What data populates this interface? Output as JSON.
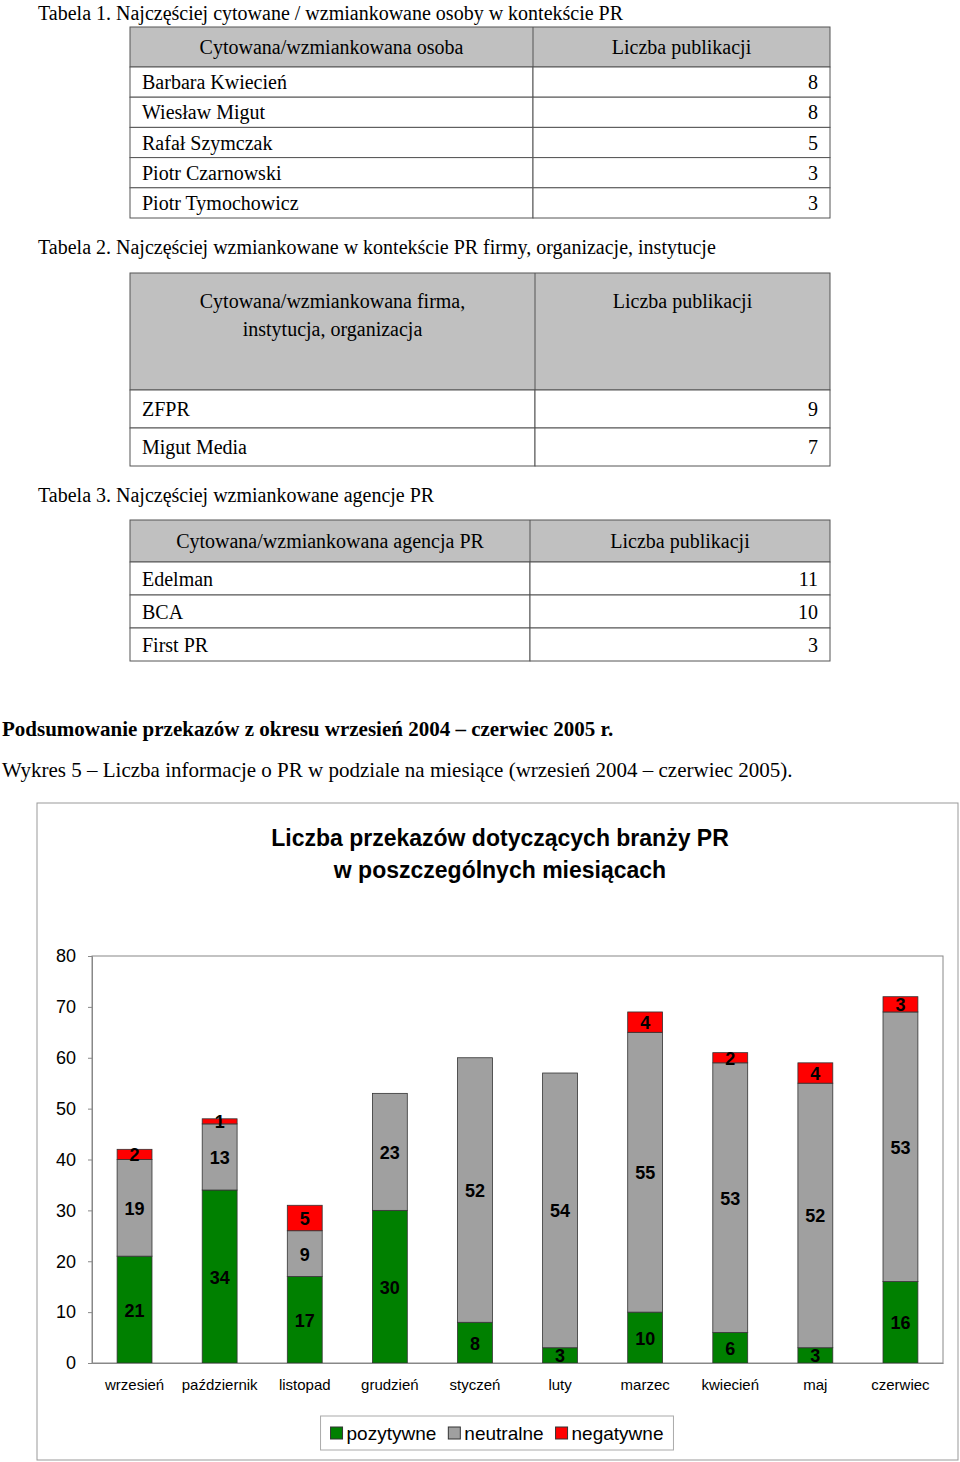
{
  "tables": [
    {
      "caption": "Tabela 1. Najczęściej cytowane / wzmiankowane osoby w kontekście PR",
      "header": [
        "Cytowana/wzmiankowana osoba",
        "Liczba publikacji"
      ],
      "rows": [
        [
          "Barbara Kwiecień",
          8
        ],
        [
          "Wiesław Migut",
          8
        ],
        [
          "Rafał Szymczak",
          5
        ],
        [
          "Piotr Czarnowski",
          3
        ],
        [
          "Piotr Tymochowicz",
          3
        ]
      ]
    },
    {
      "caption": "Tabela 2. Najczęściej wzmiankowane w kontekście PR firmy, organizacje, instytucje",
      "header": [
        "Cytowana/wzmiankowana firma,\ninstytucja, organizacja",
        "Liczba publikacji"
      ],
      "rows": [
        [
          "ZFPR",
          9
        ],
        [
          "Migut Media",
          7
        ]
      ]
    },
    {
      "caption": "Tabela 3. Najczęściej wzmiankowane agencje PR",
      "header": [
        "Cytowana/wzmiankowana agencja PR",
        "Liczba publikacji"
      ],
      "rows": [
        [
          "Edelman",
          11
        ],
        [
          "BCA",
          10
        ],
        [
          "First PR",
          3
        ]
      ]
    }
  ],
  "summary": "Podsumowanie przekazów z okresu wrzesień 2004 – czerwiec 2005 r.",
  "figure_caption": "Wykres 5 – Liczba informacje o PR w podziale na miesiące (wrzesień 2004 – czerwiec 2005).",
  "chart_data": {
    "type": "bar",
    "title": "Liczba przekazów dotyczących branży PR\nw poszczególnych miesiącach",
    "categories": [
      "wrzesień",
      "październik",
      "listopad",
      "grudzień",
      "styczeń",
      "luty",
      "marzec",
      "kwiecień",
      "maj",
      "czerwiec"
    ],
    "series": [
      {
        "name": "pozytywne",
        "color": "#008000",
        "values": [
          21,
          34,
          17,
          30,
          8,
          3,
          10,
          6,
          3,
          16
        ]
      },
      {
        "name": "neutralne",
        "color": "#a0a0a0",
        "values": [
          19,
          13,
          9,
          23,
          52,
          54,
          55,
          53,
          52,
          53
        ]
      },
      {
        "name": "negatywne",
        "color": "#ff0000",
        "values": [
          2,
          1,
          5,
          null,
          null,
          null,
          4,
          2,
          4,
          3
        ]
      }
    ],
    "stacked": true,
    "data_labels": true,
    "grid": false,
    "legend": "bottom",
    "ylim": [
      0,
      80
    ],
    "yticks": [
      0,
      10,
      20,
      30,
      40,
      50,
      60,
      70,
      80
    ]
  }
}
